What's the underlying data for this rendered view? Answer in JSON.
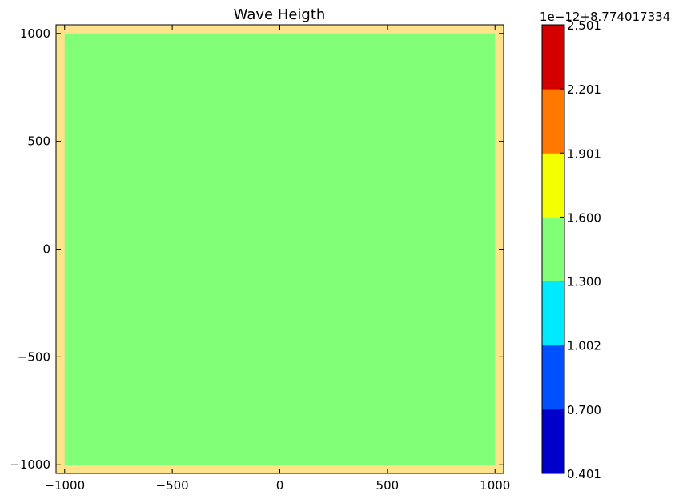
{
  "chart_data": {
    "type": "heatmap",
    "title": "Wave Heigth",
    "xlabel": "",
    "ylabel": "",
    "xlim": [
      -1040,
      1040
    ],
    "ylim": [
      -1040,
      1040
    ],
    "x_ticks": [
      -1000,
      -500,
      0,
      500,
      1000
    ],
    "x_tick_labels": [
      "−1000",
      "−500",
      "0",
      "500",
      "1000"
    ],
    "y_ticks": [
      -1000,
      -500,
      0,
      500,
      1000
    ],
    "y_tick_labels": [
      "−1000",
      "−500",
      "0",
      "500",
      "1000"
    ],
    "background_level_color": "#ffe38a",
    "field": {
      "x_range": [
        -1000,
        1000
      ],
      "y_range": [
        -1000,
        1000
      ],
      "level": "1.300–1.600",
      "color": "#80ff77"
    },
    "colorbar": {
      "offset_label": "1e−12+8.774017334",
      "levels": [
        0.401,
        0.7,
        1.002,
        1.3,
        1.6,
        1.901,
        2.201,
        2.501
      ],
      "tick_labels": [
        "0.401",
        "0.700",
        "1.002",
        "1.300",
        "1.600",
        "1.901",
        "2.201",
        "2.501"
      ],
      "colors": [
        "#0000cd",
        "#0050ff",
        "#00eaff",
        "#80ff77",
        "#f4ff00",
        "#ff7800",
        "#d40000"
      ]
    },
    "grid": false
  }
}
